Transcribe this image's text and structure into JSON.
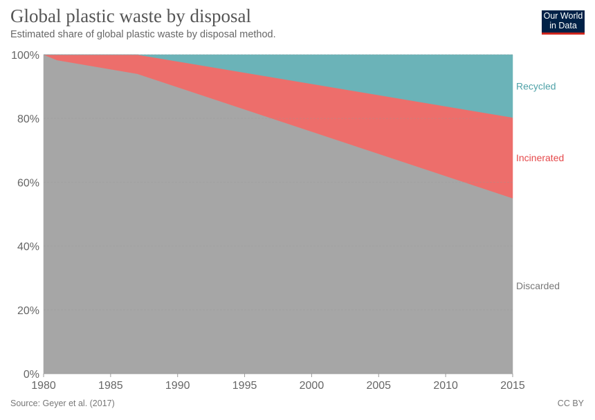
{
  "title": "Global plastic waste by disposal",
  "subtitle": "Estimated share of global plastic waste by disposal method.",
  "logo": {
    "line1": "Our World",
    "line2": "in Data"
  },
  "source": "Source: Geyer et al. (2017)",
  "license": "CC BY",
  "chart_data": {
    "type": "area",
    "stacked": true,
    "x": [
      1980,
      1981,
      1987,
      2015
    ],
    "series": [
      {
        "name": "Discarded",
        "color": "#a6a6a6",
        "values": [
          100,
          98.3,
          94.0,
          55.0
        ]
      },
      {
        "name": "Incinerated",
        "color": "#ed6e6b",
        "values": [
          0,
          1.7,
          6.0,
          25.3
        ]
      },
      {
        "name": "Recycled",
        "color": "#6bb3b8",
        "values": [
          0,
          0,
          0,
          19.7
        ]
      }
    ],
    "label_colors": {
      "Discarded": "#777777",
      "Incinerated": "#e5484a",
      "Recycled": "#4fa2a8"
    },
    "xlim": [
      1980,
      2015
    ],
    "ylim": [
      0,
      100
    ],
    "x_ticks": [
      "1980",
      "1985",
      "1990",
      "1995",
      "2000",
      "2005",
      "2010",
      "2015"
    ],
    "y_ticks": [
      "0%",
      "20%",
      "40%",
      "60%",
      "80%",
      "100%"
    ],
    "grid": "horizontal dashed",
    "legend": "right, inline labels"
  }
}
